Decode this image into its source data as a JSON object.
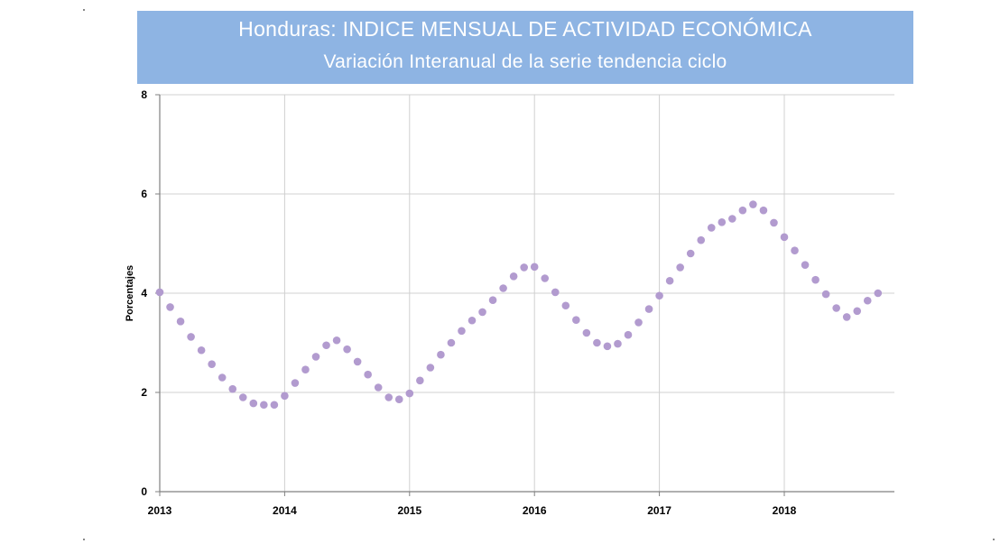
{
  "header": {
    "title": "Honduras: INDICE MENSUAL DE ACTIVIDAD ECONÓMICA",
    "subtitle": "Variación Interanual de la serie tendencia ciclo"
  },
  "chart_data": {
    "type": "scatter",
    "title": "Honduras: INDICE MENSUAL DE ACTIVIDAD ECONÓMICA",
    "subtitle": "Variación Interanual de la serie tendencia ciclo",
    "xlabel": "",
    "ylabel": "Porcentajes",
    "ylim": [
      0,
      8
    ],
    "yticks": [
      "0",
      "2",
      "4",
      "6",
      "8"
    ],
    "xticks": [
      "2013",
      "2014",
      "2015",
      "2016",
      "2017",
      "2018"
    ],
    "grid": true,
    "marker_color": "#b29bcf",
    "series": [
      {
        "name": "",
        "x": [
          "2013-01",
          "2013-02",
          "2013-03",
          "2013-04",
          "2013-05",
          "2013-06",
          "2013-07",
          "2013-08",
          "2013-09",
          "2013-10",
          "2013-11",
          "2013-12",
          "2014-01",
          "2014-02",
          "2014-03",
          "2014-04",
          "2014-05",
          "2014-06",
          "2014-07",
          "2014-08",
          "2014-09",
          "2014-10",
          "2014-11",
          "2014-12",
          "2015-01",
          "2015-02",
          "2015-03",
          "2015-04",
          "2015-05",
          "2015-06",
          "2015-07",
          "2015-08",
          "2015-09",
          "2015-10",
          "2015-11",
          "2015-12",
          "2016-01",
          "2016-02",
          "2016-03",
          "2016-04",
          "2016-05",
          "2016-06",
          "2016-07",
          "2016-08",
          "2016-09",
          "2016-10",
          "2016-11",
          "2016-12",
          "2017-01",
          "2017-02",
          "2017-03",
          "2017-04",
          "2017-05",
          "2017-06",
          "2017-07",
          "2017-08",
          "2017-09",
          "2017-10",
          "2017-11",
          "2017-12",
          "2018-01",
          "2018-02",
          "2018-03",
          "2018-04",
          "2018-05",
          "2018-06",
          "2018-07",
          "2018-08",
          "2018-09",
          "2018-10"
        ],
        "values": [
          4.02,
          3.72,
          3.43,
          3.12,
          2.85,
          2.57,
          2.3,
          2.07,
          1.9,
          1.78,
          1.75,
          1.75,
          1.93,
          2.19,
          2.46,
          2.72,
          2.95,
          3.05,
          2.87,
          2.62,
          2.36,
          2.1,
          1.9,
          1.86,
          1.98,
          2.24,
          2.5,
          2.76,
          3.0,
          3.24,
          3.45,
          3.62,
          3.86,
          4.1,
          4.34,
          4.52,
          4.53,
          4.3,
          4.02,
          3.75,
          3.46,
          3.2,
          3.0,
          2.93,
          2.98,
          3.16,
          3.41,
          3.68,
          3.95,
          4.25,
          4.52,
          4.8,
          5.07,
          5.32,
          5.43,
          5.5,
          5.67,
          5.79,
          5.67,
          5.42,
          5.13,
          4.86,
          4.57,
          4.27,
          3.98,
          3.7,
          3.52,
          3.64,
          3.85,
          4.0
        ]
      }
    ]
  }
}
